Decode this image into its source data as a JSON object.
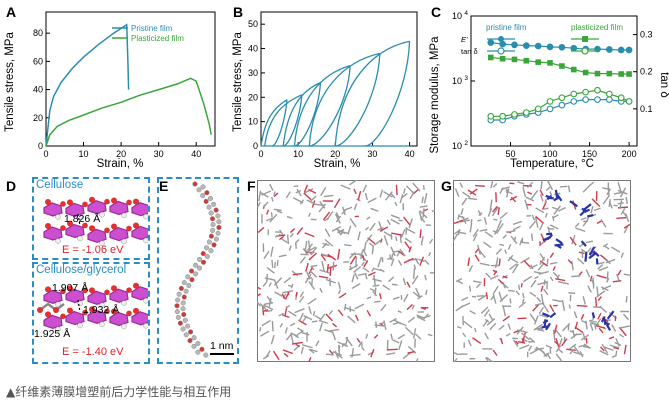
{
  "panels": {
    "A": {
      "label": "A",
      "ylabel": "Tensile stress, MPa",
      "xlabel": "Strain, %",
      "legend": [
        "Pristine film",
        "Plasticized film"
      ],
      "xticks": [
        "0",
        "10",
        "20",
        "30",
        "40"
      ],
      "yticks": [
        "0",
        "20",
        "40",
        "60",
        "80"
      ]
    },
    "B": {
      "label": "B",
      "ylabel": "Tensile stress, MPa",
      "xlabel": "Strain, %",
      "xticks": [
        "0",
        "10",
        "20",
        "30",
        "40"
      ],
      "yticks": [
        "0",
        "10",
        "20",
        "30",
        "40",
        "50"
      ]
    },
    "C": {
      "label": "C",
      "ylabel": "Storage modulus, MPa",
      "y2label": "tan δ",
      "xlabel": "Temperature, °C",
      "legend_pristine": "pristine film",
      "legend_plasticized": "plasticized film",
      "legend_e": "E'",
      "legend_tan": "tan δ",
      "xticks": [
        "50",
        "100",
        "150",
        "200"
      ],
      "yticks_base": "10",
      "yticks_exp": [
        "2",
        "3",
        "4"
      ],
      "y2ticks": [
        "0.1",
        "0.2",
        "0.3"
      ]
    },
    "D": {
      "label": "D",
      "top_title": "Cellulose",
      "top_distance": "1.826 Å",
      "top_energy": "E = -1.06 eV",
      "bottom_title": "Cellulose/glycerol",
      "bottom_distances": [
        "1.907 Å",
        "1.932 Å",
        "1.925 Å"
      ],
      "bottom_energy": "E = -1.40 eV"
    },
    "E": {
      "label": "E",
      "scale": "1 nm"
    },
    "F": {
      "label": "F"
    },
    "G": {
      "label": "G"
    }
  },
  "caption": "▲纤维素薄膜增塑前后力学性能与相互作用",
  "colors": {
    "pristine": "#2a8daf",
    "plasticized": "#3aa63a",
    "accent_blue": "#2a8dc8",
    "energy_red": "#e0202a"
  },
  "chart_data": [
    {
      "panel": "A",
      "type": "line",
      "xlabel": "Strain, %",
      "ylabel": "Tensile stress, MPa",
      "xlim": [
        0,
        45
      ],
      "ylim": [
        0,
        95
      ],
      "series": [
        {
          "name": "Pristine film",
          "x": [
            0,
            1,
            2,
            4,
            7,
            10,
            14,
            18,
            21.5,
            21.8,
            22,
            22
          ],
          "y": [
            0,
            25,
            35,
            45,
            55,
            63,
            72,
            80,
            86,
            60,
            40,
            40
          ]
        },
        {
          "name": "Plasticized film",
          "x": [
            0,
            1,
            3,
            6,
            10,
            15,
            20,
            25,
            30,
            35,
            38.5,
            40,
            42,
            43.5,
            44
          ],
          "y": [
            0,
            8,
            14,
            18,
            22,
            27,
            31,
            36,
            40,
            44,
            48,
            46,
            30,
            15,
            8
          ]
        }
      ]
    },
    {
      "panel": "B",
      "type": "line",
      "xlabel": "Strain, %",
      "ylabel": "Tensile stress, MPa",
      "xlim": [
        0,
        42
      ],
      "ylim": [
        0,
        55
      ],
      "cycle_peaks": [
        [
          7,
          19
        ],
        [
          11,
          21
        ],
        [
          16,
          26
        ],
        [
          24,
          33
        ],
        [
          32,
          38
        ],
        [
          40,
          43
        ]
      ],
      "cycle_residual_strain": [
        3,
        6,
        9,
        13,
        20,
        28
      ]
    },
    {
      "panel": "C",
      "type": "line",
      "xlabel": "Temperature, °C",
      "ylabel": "Storage modulus, MPa",
      "y2label": "tan δ",
      "xlim": [
        0,
        210
      ],
      "ylim_log": [
        100,
        10000
      ],
      "y2lim": [
        0,
        0.35
      ],
      "x": [
        25,
        40,
        55,
        70,
        85,
        100,
        115,
        130,
        145,
        160,
        175,
        190,
        200
      ],
      "series": [
        {
          "name": "pristine film E'",
          "values": [
            3900,
            3700,
            3600,
            3500,
            3450,
            3350,
            3300,
            3200,
            3100,
            3100,
            3050,
            3000,
            3000
          ]
        },
        {
          "name": "plasticized film E'",
          "values": [
            2300,
            2200,
            2150,
            2050,
            1950,
            1900,
            1700,
            1500,
            1350,
            1300,
            1300,
            1280,
            1280
          ]
        },
        {
          "name": "pristine film tan δ",
          "values": [
            0.07,
            0.07,
            0.08,
            0.085,
            0.09,
            0.1,
            0.11,
            0.12,
            0.125,
            0.125,
            0.125,
            0.12,
            0.12
          ]
        },
        {
          "name": "plasticized film tan δ",
          "values": [
            0.08,
            0.08,
            0.085,
            0.09,
            0.1,
            0.12,
            0.13,
            0.14,
            0.145,
            0.15,
            0.14,
            0.13,
            0.12
          ]
        }
      ]
    }
  ]
}
